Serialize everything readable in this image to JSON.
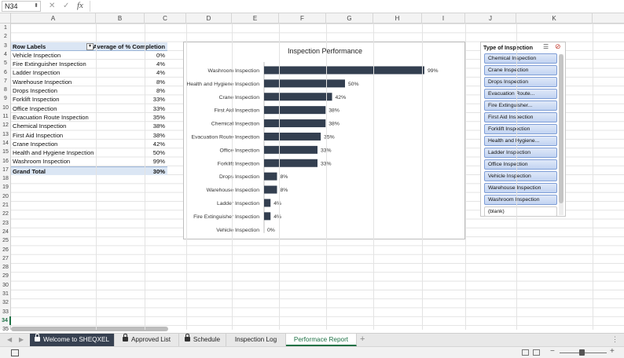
{
  "namebox": "N34",
  "columns": [
    "A",
    "B",
    "C",
    "D",
    "E",
    "F",
    "G",
    "H",
    "I",
    "J",
    "K"
  ],
  "rows": [
    "1",
    "2",
    "3",
    "4",
    "5",
    "6",
    "7",
    "8",
    "9",
    "10",
    "11",
    "12",
    "13",
    "14",
    "15",
    "16",
    "17",
    "18",
    "19",
    "20",
    "21",
    "22",
    "23",
    "24",
    "25",
    "26",
    "27",
    "28",
    "29",
    "30",
    "31",
    "32",
    "33",
    "34",
    "35"
  ],
  "selected_row": "34",
  "pivot": {
    "header_label": "Row Labels",
    "header_value": "Average of % Completion",
    "rows": [
      {
        "label": "Vehicle Inspection",
        "value": "0%"
      },
      {
        "label": "Fire Extinguisher Inspection",
        "value": "4%"
      },
      {
        "label": "Ladder Inspection",
        "value": "4%"
      },
      {
        "label": "Warehouse Inspection",
        "value": "8%"
      },
      {
        "label": "Drops Inspection",
        "value": "8%"
      },
      {
        "label": "Forklift Inspection",
        "value": "33%"
      },
      {
        "label": "Office Inspection",
        "value": "33%"
      },
      {
        "label": "Evacuation Route Inspection",
        "value": "35%"
      },
      {
        "label": "Chemical Inspection",
        "value": "38%"
      },
      {
        "label": "First Aid Inspection",
        "value": "38%"
      },
      {
        "label": "Crane Inspection",
        "value": "42%"
      },
      {
        "label": "Health and Hygiene Inspection",
        "value": "50%"
      },
      {
        "label": "Washroom Inspection",
        "value": "99%"
      }
    ],
    "grand_label": "Grand Total",
    "grand_value": "30%"
  },
  "chart_data": {
    "type": "bar",
    "title": "Inspection Performance",
    "orientation": "horizontal",
    "categories": [
      "Washroom Inspection",
      "Health and Hygiene Inspection",
      "Crane Inspection",
      "First Aid Inspection",
      "Chemical Inspection",
      "Evacuation Route Inspection",
      "Office Inspection",
      "Forklift Inspection",
      "Drops Inspection",
      "Warehouse Inspection",
      "Ladder Inspection",
      "Fire Extinguisher Inspection",
      "Vehicle Inspection"
    ],
    "values": [
      99,
      50,
      42,
      38,
      38,
      35,
      33,
      33,
      8,
      8,
      4,
      4,
      0
    ],
    "data_labels": [
      "99%",
      "50%",
      "42%",
      "38%",
      "38%",
      "35%",
      "33%",
      "33%",
      "8%",
      "8%",
      "4%",
      "4%",
      "0%"
    ],
    "xlim": [
      0,
      100
    ],
    "bar_color": "#333f50",
    "grid": false
  },
  "slicer": {
    "title": "Type of Inspection",
    "items": [
      "Chemical Inspection",
      "Crane Inspection",
      "Drops Inspection",
      "Evacuation Route...",
      "Fire Extinguisher...",
      "First Aid Inspection",
      "Forklift Inspection",
      "Health and Hygiene...",
      "Ladder Inspection",
      "Office Inspection",
      "Vehicle Inspection",
      "Warehouse Inspection",
      "Washroom Inspection",
      "(blank)"
    ]
  },
  "tabs": [
    {
      "label": "Welcome to SHEQXEL",
      "locked": true,
      "style": "dark"
    },
    {
      "label": "Approved List",
      "locked": true,
      "style": "normal"
    },
    {
      "label": "Schedule",
      "locked": true,
      "style": "normal"
    },
    {
      "label": "Inspection Log",
      "locked": false,
      "style": "normal"
    },
    {
      "label": "Performace Report",
      "locked": false,
      "style": "active"
    }
  ],
  "colors": {
    "accent": "#1e7145",
    "pivot_header": "#dbe6f4",
    "slicer_item": "#c2d4f2",
    "bar": "#333f50"
  }
}
